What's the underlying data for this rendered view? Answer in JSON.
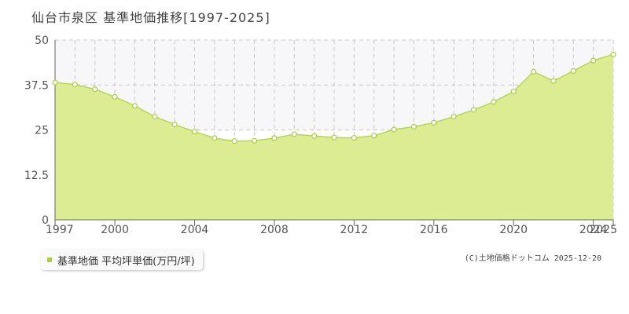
{
  "title": "仙台市泉区 基準地価推移[1997-2025]",
  "legend_label": "基準地価 平均坪単価(万円/坪)",
  "copyright": "(C)土地価格ドットコム 2025-12-20",
  "colors": {
    "fill": "#dbec92",
    "line": "#b4d84e",
    "marker_stroke": "#a8cf3c",
    "legend_swatch": "#a8cf3c",
    "grid": "#c8c8c8",
    "plot_band": "#f7f7f9"
  },
  "chart_data": {
    "type": "area",
    "title": "仙台市泉区 基準地価推移[1997-2025]",
    "xlabel": "",
    "ylabel": "",
    "x": [
      1997,
      1998,
      1999,
      2000,
      2001,
      2002,
      2003,
      2004,
      2005,
      2006,
      2007,
      2008,
      2009,
      2010,
      2011,
      2012,
      2013,
      2014,
      2015,
      2016,
      2017,
      2018,
      2019,
      2020,
      2021,
      2022,
      2023,
      2024,
      2025
    ],
    "series": [
      {
        "name": "基準地価 平均坪単価(万円/坪)",
        "values": [
          38.2,
          37.6,
          36.3,
          34.2,
          31.7,
          28.7,
          26.5,
          24.5,
          22.7,
          21.9,
          22.0,
          22.7,
          23.8,
          23.3,
          22.9,
          22.8,
          23.4,
          25.1,
          25.9,
          27.0,
          28.7,
          30.6,
          32.8,
          35.7,
          41.2,
          38.6,
          41.4,
          44.3,
          46.0
        ]
      }
    ],
    "xlim": [
      1997,
      2025
    ],
    "ylim": [
      0,
      50
    ],
    "y_ticks": [
      "0",
      "12.5",
      "25",
      "37.5",
      "50"
    ],
    "x_tick_labels": [
      "1997",
      "2000",
      "2004",
      "2008",
      "2012",
      "2016",
      "2020",
      "2024",
      "2025"
    ],
    "grid": true,
    "legend_position": "bottom-left"
  }
}
